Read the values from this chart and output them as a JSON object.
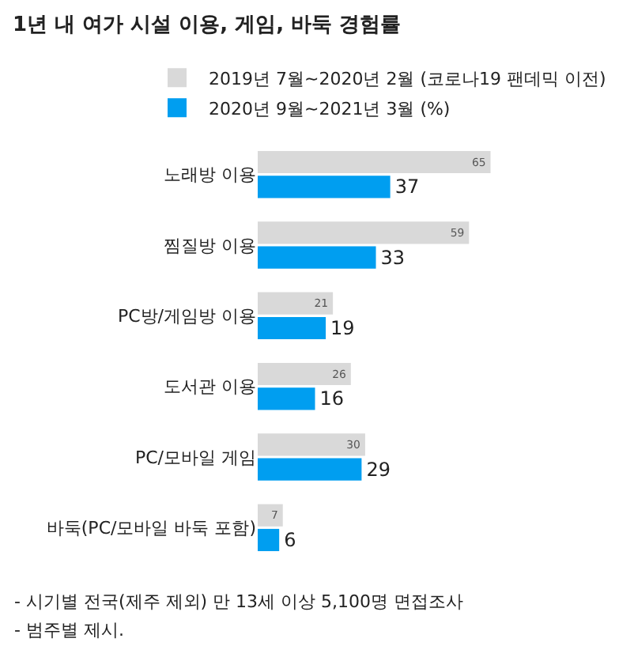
{
  "chart_data": {
    "type": "bar",
    "orientation": "horizontal",
    "title": "1년 내 여가 시설 이용, 게임, 바둑 경험률",
    "categories": [
      "노래방 이용",
      "찜질방 이용",
      "PC방/게임방 이용",
      "도서관 이용",
      "PC/모바일 게임",
      "바둑(PC/모바일 바둑 포함)"
    ],
    "series": [
      {
        "name": "2019년 7월~2020년 2월 (코로나19 팬데믹 이전)",
        "color": "#d9d9d9",
        "values": [
          65,
          59,
          21,
          26,
          30,
          7
        ]
      },
      {
        "name": "2020년 9월~2021년 3월 (%)",
        "color": "#009ef0",
        "values": [
          37,
          33,
          19,
          16,
          29,
          6
        ]
      }
    ],
    "data_labels": true,
    "legend": "top",
    "tick_labels": "y",
    "annotations": [
      "- 시기별 전국(제주 제외) 만 13세 이상 5,100명 면접조사",
      "- 범주별 제시."
    ]
  }
}
